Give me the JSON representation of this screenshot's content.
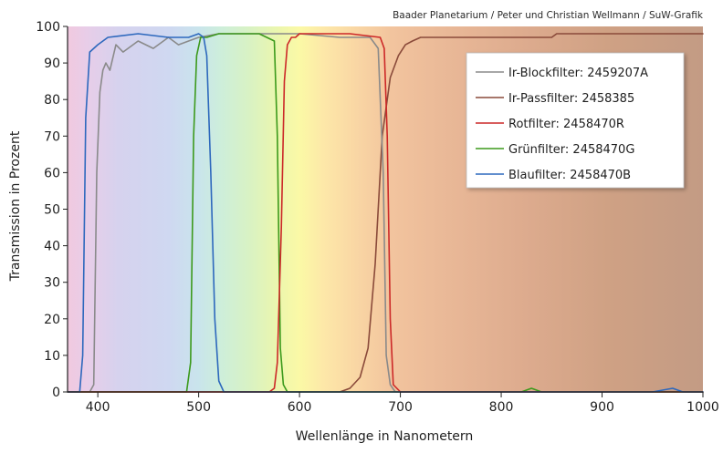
{
  "credit": "Baader Planetarium / Peter und Christian Wellmann / SuW-Grafik",
  "chart_data": {
    "type": "line",
    "xlabel": "Wellenlänge in Nanometern",
    "ylabel": "Transmission in Prozent",
    "xlim": [
      370,
      1000
    ],
    "ylim": [
      0,
      100
    ],
    "xticks": [
      400,
      500,
      600,
      700,
      800,
      900,
      1000
    ],
    "yticks": [
      0,
      10,
      20,
      30,
      40,
      50,
      60,
      70,
      80,
      90,
      100
    ],
    "grid": false,
    "legend": "top-right",
    "series": [
      {
        "name": "Ir-Blockfilter: 2459207A",
        "color": "#8a8a8a",
        "x": [
          370,
          392,
          396,
          399,
          402,
          405,
          408,
          412,
          418,
          425,
          440,
          455,
          470,
          480,
          490,
          500,
          520,
          560,
          600,
          640,
          670,
          678,
          683,
          686,
          690,
          695,
          700,
          720,
          800,
          900,
          1000
        ],
        "y": [
          0,
          0,
          2,
          60,
          82,
          88,
          90,
          88,
          95,
          93,
          96,
          94,
          97,
          95,
          96,
          97,
          98,
          98,
          98,
          97,
          97,
          94,
          60,
          10,
          2,
          0,
          0,
          0,
          0,
          0,
          0
        ]
      },
      {
        "name": "Ir-Passfilter: 2458385",
        "color": "#8a4a3a",
        "x": [
          370,
          600,
          640,
          650,
          660,
          668,
          675,
          682,
          690,
          698,
          705,
          712,
          720,
          740,
          760,
          800,
          850,
          855,
          900,
          950,
          1000
        ],
        "y": [
          0,
          0,
          0,
          1,
          4,
          12,
          35,
          70,
          86,
          92,
          95,
          96,
          97,
          97,
          97,
          97,
          97,
          98,
          98,
          98,
          98
        ]
      },
      {
        "name": "Rotfilter: 2458470R",
        "color": "#cc2828",
        "x": [
          370,
          570,
          575,
          578,
          582,
          585,
          588,
          592,
          596,
          600,
          620,
          650,
          680,
          684,
          687,
          690,
          693,
          700,
          720,
          800,
          900,
          1000
        ],
        "y": [
          0,
          0,
          1,
          8,
          45,
          85,
          95,
          97,
          97,
          98,
          98,
          98,
          97,
          94,
          70,
          20,
          2,
          0,
          0,
          0,
          0,
          0
        ]
      },
      {
        "name": "Grünfilter: 2458470G",
        "color": "#3c9a1c",
        "x": [
          370,
          488,
          492,
          495,
          498,
          502,
          508,
          520,
          540,
          560,
          575,
          578,
          581,
          584,
          588,
          595,
          650,
          700,
          820,
          830,
          840,
          900,
          1000
        ],
        "y": [
          0,
          0,
          8,
          70,
          92,
          97,
          97,
          98,
          98,
          98,
          96,
          70,
          12,
          2,
          0,
          0,
          0,
          0,
          0,
          1,
          0,
          0,
          0
        ]
      },
      {
        "name": "Blaufilter: 2458470B",
        "color": "#2d68bd",
        "x": [
          370,
          382,
          385,
          388,
          392,
          400,
          410,
          440,
          470,
          490,
          500,
          505,
          508,
          512,
          516,
          520,
          525,
          600,
          950,
          970,
          980,
          1000
        ],
        "y": [
          0,
          0,
          10,
          75,
          93,
          95,
          97,
          98,
          97,
          97,
          98,
          97,
          92,
          60,
          20,
          3,
          0,
          0,
          0,
          1,
          0,
          0
        ]
      }
    ]
  }
}
